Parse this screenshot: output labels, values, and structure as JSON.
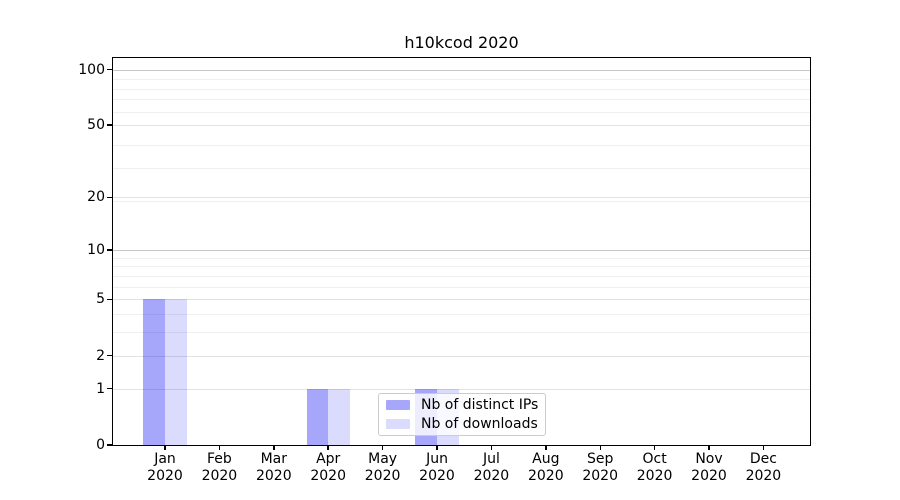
{
  "figure": {
    "title": "h10kcod 2020",
    "background": "#ffffff"
  },
  "legend": {
    "items": [
      {
        "label": "Nb of distinct IPs",
        "color": "#a6a6fa"
      },
      {
        "label": "Nb of downloads",
        "color": "#dbdbfd"
      }
    ]
  },
  "y_axis": {
    "tick_labels": [
      "0",
      "1",
      "2",
      "5",
      "10",
      "20",
      "50",
      "100"
    ]
  },
  "x_axis": {
    "tick_labels": [
      "Jan 2020",
      "Feb 2020",
      "Mar 2020",
      "Apr 2020",
      "May 2020",
      "Jun 2020",
      "Jul 2020",
      "Aug 2020",
      "Sep 2020",
      "Oct 2020",
      "Nov 2020",
      "Dec 2020"
    ]
  },
  "chart_data": {
    "type": "bar",
    "title": "h10kcod 2020",
    "categories": [
      "Jan 2020",
      "Feb 2020",
      "Mar 2020",
      "Apr 2020",
      "May 2020",
      "Jun 2020",
      "Jul 2020",
      "Aug 2020",
      "Sep 2020",
      "Oct 2020",
      "Nov 2020",
      "Dec 2020"
    ],
    "series": [
      {
        "name": "Nb of distinct IPs",
        "color": "#a6a6fa",
        "fill_rgba": "rgba(0,0,240,0.35)",
        "values": [
          5,
          0,
          0,
          1,
          0,
          1,
          0,
          0,
          0,
          0,
          0,
          0
        ]
      },
      {
        "name": "Nb of downloads",
        "color": "#dbdbfd",
        "fill_rgba": "rgba(0,0,240,0.14)",
        "values": [
          5,
          0,
          0,
          1,
          0,
          1,
          0,
          0,
          0,
          0,
          0,
          0
        ]
      }
    ],
    "y_ticks": [
      0,
      1,
      2,
      5,
      10,
      20,
      50,
      100
    ],
    "yscale": "log10(1+y)",
    "ylim": [
      0,
      115
    ],
    "grid": true,
    "legend_position": "inside lower-center"
  }
}
